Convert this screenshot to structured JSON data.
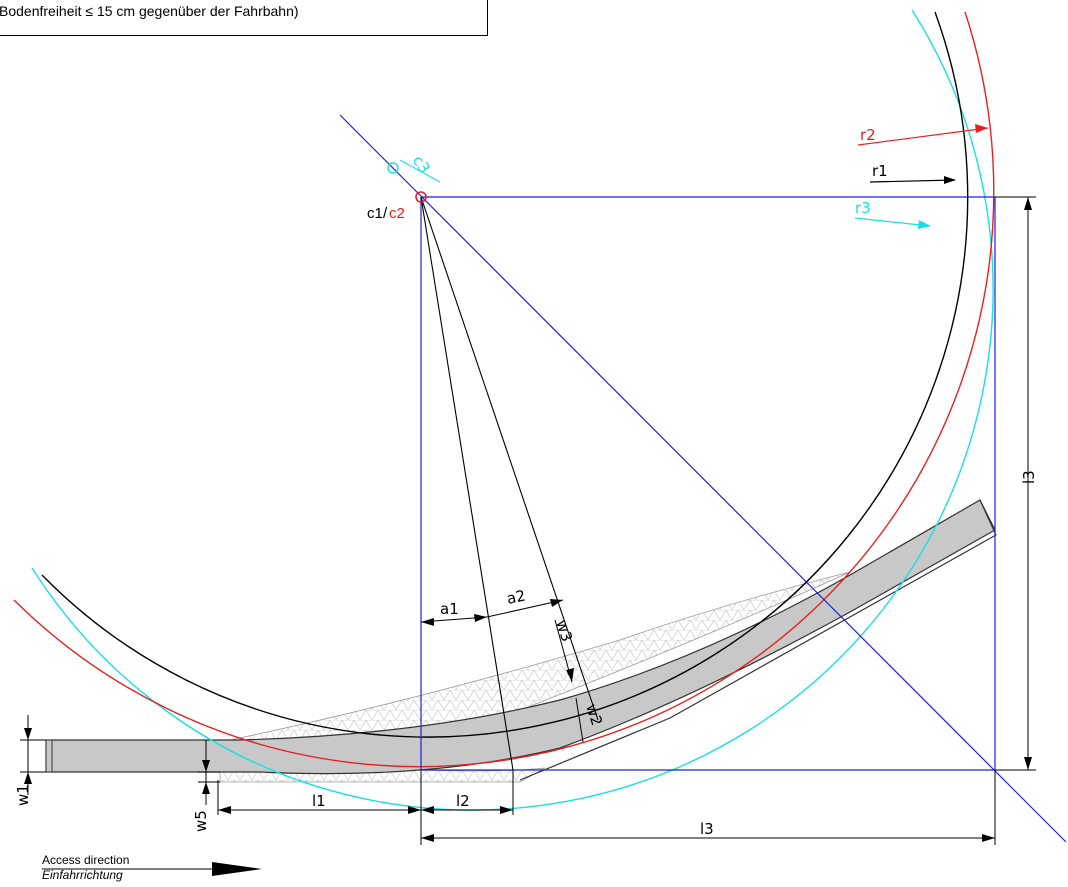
{
  "note": "Bodenfreiheit ≤ 15 cm gegenüber der Fahrbahn)",
  "labels": {
    "center_c1": "c1",
    "center_sep": "/",
    "center_c2": "c2",
    "r1": "r1",
    "r2": "r2",
    "r3": "r3",
    "c3": "c3",
    "l1": "l1",
    "l2": "l2",
    "l3_bottom": "l3",
    "l3_right": "l3",
    "a1": "a1",
    "a2": "a2",
    "w1": "w1",
    "w2": "w2",
    "w3": "w3",
    "w5": "w5"
  },
  "access": {
    "en": "Access direction",
    "de": "Einfahrrichtung"
  },
  "colors": {
    "line": "#000000",
    "construction": "#1f1fdc",
    "r2_curve": "#e82020",
    "r3_curve": "#19e0e0",
    "ramp_fill": "#c8c8c8",
    "hatch": "#d9d9d9"
  }
}
